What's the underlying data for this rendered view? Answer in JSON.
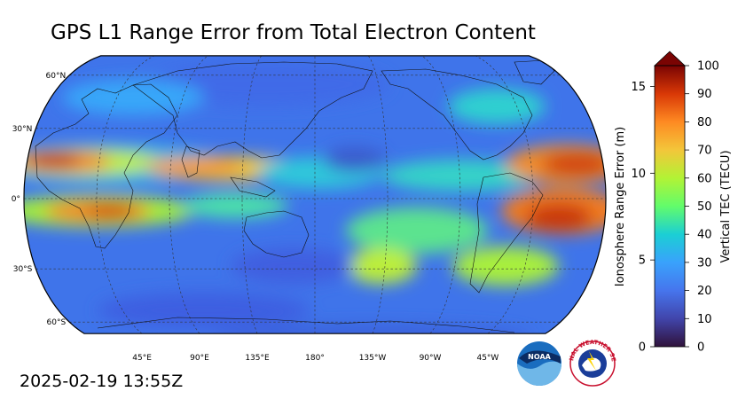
{
  "title": "GPS L1 Range Error from Total Electron Content",
  "timestamp": "2025-02-19 13:55Z",
  "map": {
    "lat_labels": [
      "60°N",
      "30°N",
      "0°",
      "30°S",
      "60°S"
    ],
    "lon_labels": [
      "45°E",
      "90°E",
      "135°E",
      "180°",
      "135°W",
      "90°W",
      "45°W"
    ]
  },
  "colorbar": {
    "left_label": "Ionosphere Range Error (m)",
    "right_label": "Vertical TEC (TECU)",
    "left_ticks": [
      "0",
      "5",
      "10",
      "15"
    ],
    "right_ticks": [
      "0",
      "10",
      "20",
      "30",
      "40",
      "50",
      "60",
      "70",
      "80",
      "90",
      "100"
    ],
    "tecu_range": [
      0,
      100
    ],
    "range_error_range": [
      0,
      16.2
    ]
  },
  "logos": {
    "noaa": {
      "text": "NOAA",
      "name": "noaa-logo"
    },
    "nws": {
      "text": "NATIONAL WEATHER SERVICE",
      "name": "nws-logo"
    }
  },
  "colors": {
    "low": "#30123b",
    "mid": "#46f884",
    "high": "#7a0403"
  }
}
